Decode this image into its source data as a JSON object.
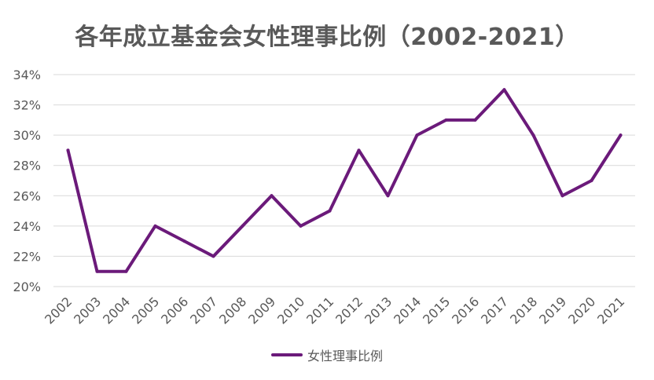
{
  "chart_data": {
    "type": "line",
    "title": "各年成立基金会女性理事比例（2002-2021）",
    "xlabel": "",
    "ylabel": "",
    "categories": [
      "2002",
      "2003",
      "2004",
      "2005",
      "2006",
      "2007",
      "2008",
      "2009",
      "2010",
      "2011",
      "2012",
      "2013",
      "2014",
      "2015",
      "2016",
      "2017",
      "2018",
      "2019",
      "2020",
      "2021"
    ],
    "series": [
      {
        "name": "女性理事比例",
        "values": [
          29,
          21,
          21,
          24,
          23,
          22,
          24,
          26,
          24,
          25,
          29,
          26,
          30,
          31,
          31,
          33,
          30,
          26,
          27,
          30
        ]
      }
    ],
    "ylim": [
      20,
      34
    ],
    "yticks": [
      "20%",
      "22%",
      "24%",
      "26%",
      "28%",
      "30%",
      "32%",
      "34%"
    ],
    "grid": true,
    "legend_position": "bottom",
    "line_color": "#6b1a7a"
  }
}
